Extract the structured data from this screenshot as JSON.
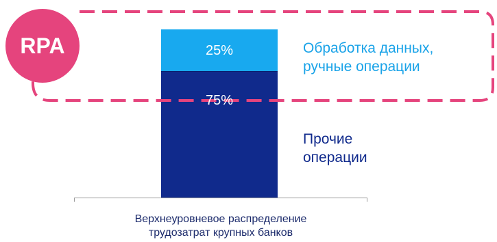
{
  "badge": {
    "text": "RPA",
    "color": "#e5447d"
  },
  "colors": {
    "highlight_border": "#e5447d",
    "axis_line": "#9a9a9a",
    "caption_text": "#1b2a6b"
  },
  "chart_data": {
    "type": "bar",
    "stacked": true,
    "categories": [
      "Верхнеуровневое распределение трудозатрат крупных банков"
    ],
    "xlabel_lines": [
      "Верхнеуровневое распределение",
      "трудозатрат крупных банков"
    ],
    "ylim": [
      0,
      100
    ],
    "grid": false,
    "legend_placement": "right",
    "series": [
      {
        "name": "Прочие операции",
        "name_lines": [
          "Прочие",
          "операции"
        ],
        "values": [
          75
        ],
        "label": "75%",
        "color": "#102a8c",
        "text_color": "#102a8c"
      },
      {
        "name": "Обработка данных, ручные операции",
        "name_lines": [
          "Обработка данных,",
          "ручные операции"
        ],
        "values": [
          25
        ],
        "label": "25%",
        "color": "#18a9ef",
        "text_color": "#1aa3e8"
      }
    ]
  }
}
